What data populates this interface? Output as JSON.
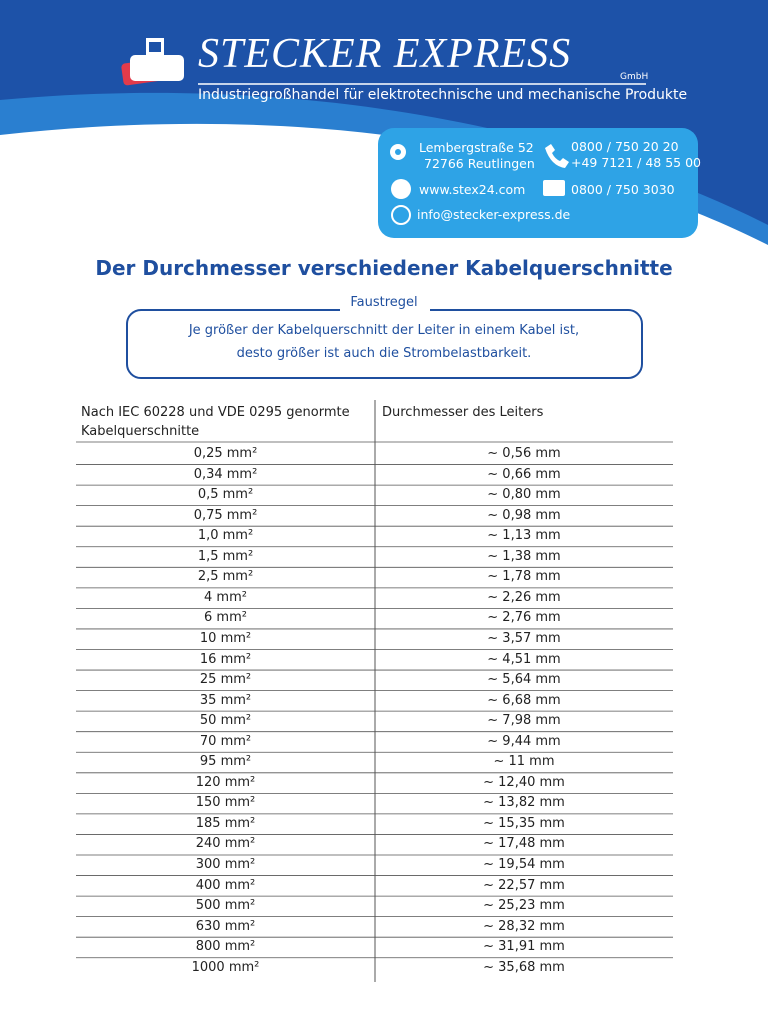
{
  "header": {
    "brand": "STECKER EXPRESS",
    "suffix": "GmbH",
    "tagline": "Industriegroßhandel für elektrotechnische und mechanische Produkte"
  },
  "contact": {
    "street": "Lembergstraße 52",
    "city": "72766 Reutlingen",
    "phone1": "0800 / 750 20 20",
    "phone2": "+49 7121 / 48 55 00",
    "web": "www.stex24.com",
    "fax": "0800 / 750 3030",
    "email": "info@stecker-express.de"
  },
  "title": "Der Durchmesser verschiedener Kabelquerschnitte",
  "rule": {
    "label": "Faustregel",
    "lines": [
      "Je größer der Kabelquerschnitt der Leiter in einem Kabel ist,",
      "desto größer ist auch die Strombelastbarkeit."
    ]
  },
  "table": {
    "header": [
      "Nach IEC 60228 und VDE 0295 genormte Kabelquerschnitte",
      "Durchmesser des Leiters"
    ],
    "rows": [
      [
        "0,25 mm²",
        "~ 0,56 mm"
      ],
      [
        "0,34 mm²",
        "~ 0,66 mm"
      ],
      [
        "0,5 mm²",
        "~ 0,80 mm"
      ],
      [
        "0,75 mm²",
        "~ 0,98 mm"
      ],
      [
        "1,0 mm²",
        "~ 1,13 mm"
      ],
      [
        "1,5 mm²",
        "~ 1,38 mm"
      ],
      [
        "2,5 mm²",
        "~ 1,78 mm"
      ],
      [
        "4 mm²",
        "~ 2,26 mm"
      ],
      [
        "6 mm²",
        "~ 2,76 mm"
      ],
      [
        "10 mm²",
        "~ 3,57 mm"
      ],
      [
        "16 mm²",
        "~ 4,51 mm"
      ],
      [
        "25 mm²",
        "~ 5,64 mm"
      ],
      [
        "35 mm²",
        "~ 6,68 mm"
      ],
      [
        "50 mm²",
        "~ 7,98 mm"
      ],
      [
        "70 mm²",
        "~ 9,44 mm"
      ],
      [
        "95 mm²",
        "~ 11 mm"
      ],
      [
        "120 mm²",
        "~ 12,40 mm"
      ],
      [
        "150 mm²",
        "~ 13,82 mm"
      ],
      [
        "185 mm²",
        "~ 15,35 mm"
      ],
      [
        "240 mm²",
        "~ 17,48 mm"
      ],
      [
        "300 mm²",
        "~ 19,54 mm"
      ],
      [
        "400 mm²",
        "~ 22,57 mm"
      ],
      [
        "500 mm²",
        "~ 25,23 mm"
      ],
      [
        "630 mm²",
        "~ 28,32 mm"
      ],
      [
        "800 mm²",
        "~ 31,91 mm"
      ],
      [
        "1000 mm²",
        "~ 35,68 mm"
      ]
    ]
  }
}
